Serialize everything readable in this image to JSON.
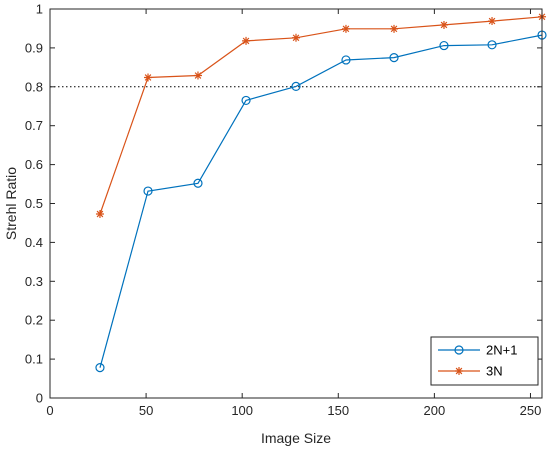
{
  "chart_data": {
    "type": "line",
    "title": "",
    "xlabel": "Image Size",
    "ylabel": "Strehl Ratio",
    "xlim": [
      0,
      256
    ],
    "ylim": [
      0,
      1
    ],
    "x_ticks": [
      0,
      50,
      100,
      150,
      200,
      250
    ],
    "x_tick_labels": [
      "0",
      "50",
      "100",
      "150",
      "200",
      "250"
    ],
    "y_ticks": [
      0,
      0.1,
      0.2,
      0.3,
      0.4,
      0.5,
      0.6,
      0.7,
      0.8,
      0.9,
      1
    ],
    "y_tick_labels": [
      "0",
      "0.1",
      "0.2",
      "0.3",
      "0.4",
      "0.5",
      "0.6",
      "0.7",
      "0.8",
      "0.9",
      "1"
    ],
    "grid": false,
    "reference_line": {
      "y": 0.8,
      "style": "dotted",
      "color": "#000000"
    },
    "legend_position": "bottom-right",
    "x": [
      26,
      51,
      77,
      102,
      128,
      154,
      179,
      205,
      230,
      256
    ],
    "series": [
      {
        "name": "2N+1",
        "color": "#0072bd",
        "marker": "circle",
        "values": [
          0.078,
          0.532,
          0.552,
          0.765,
          0.801,
          0.869,
          0.875,
          0.906,
          0.908,
          0.933
        ]
      },
      {
        "name": "3N",
        "color": "#d95319",
        "marker": "asterisk",
        "values": [
          0.473,
          0.824,
          0.829,
          0.918,
          0.926,
          0.949,
          0.949,
          0.959,
          0.969,
          0.98
        ]
      }
    ]
  }
}
